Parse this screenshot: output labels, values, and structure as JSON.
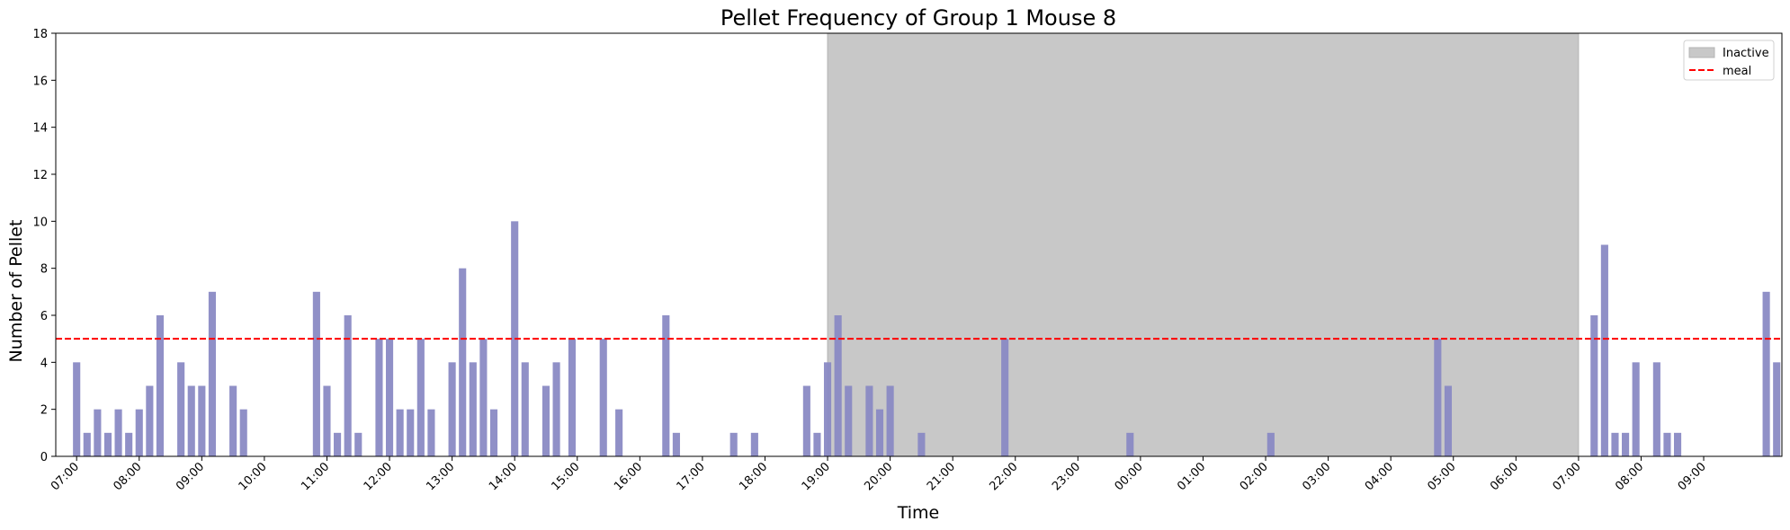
{
  "chart_data": {
    "type": "bar",
    "title": "Pellet Frequency of Group 1 Mouse 8",
    "xlabel": "Time",
    "ylabel": "Number of Pellet",
    "ylim": [
      0,
      18
    ],
    "yticks": [
      0,
      2,
      4,
      6,
      8,
      10,
      12,
      14,
      16,
      18
    ],
    "xlim": [
      "06:40",
      "34:15"
    ],
    "xticks": [
      "07:00",
      "08:00",
      "09:00",
      "10:00",
      "11:00",
      "12:00",
      "13:00",
      "14:00",
      "15:00",
      "16:00",
      "17:00",
      "18:00",
      "19:00",
      "20:00",
      "21:00",
      "22:00",
      "23:00",
      "00:00",
      "01:00",
      "02:00",
      "03:00",
      "04:00",
      "05:00",
      "06:00",
      "07:00",
      "08:00",
      "09:00"
    ],
    "bar_width_minutes": 7,
    "colors": {
      "bar": "#8a8ac4",
      "inactive": "#c8c8c8",
      "meal": "#ff0000"
    },
    "inactive": {
      "name": "Inactive",
      "start": "19:00",
      "end": "31:00"
    },
    "meal": {
      "name": "meal",
      "value": 5
    },
    "legend": {
      "placement": "top-right",
      "entries": [
        "Inactive",
        "meal"
      ]
    },
    "series": [
      {
        "x": [
          "07:00",
          "07:10",
          "07:20",
          "07:30",
          "07:40",
          "07:50",
          "08:00",
          "08:10",
          "08:20",
          "08:40",
          "08:50",
          "09:00",
          "09:10",
          "09:30",
          "09:40",
          "10:50",
          "11:00",
          "11:10",
          "11:20",
          "11:30",
          "11:50",
          "12:00",
          "12:10",
          "12:20",
          "12:30",
          "12:40",
          "13:00",
          "13:10",
          "13:20",
          "13:30",
          "13:40",
          "14:00",
          "14:10",
          "14:30",
          "14:40",
          "14:55",
          "15:25",
          "15:40",
          "16:25",
          "16:35",
          "17:30",
          "17:50",
          "18:40",
          "18:50",
          "19:00",
          "19:10",
          "19:20",
          "19:40",
          "19:50",
          "20:00",
          "20:30",
          "21:50",
          "23:50",
          "26:05",
          "28:45",
          "28:55",
          "31:15",
          "31:25",
          "31:35",
          "31:45",
          "31:55",
          "32:15",
          "32:25",
          "32:35",
          "34:00",
          "34:10"
        ],
        "values": [
          4,
          1,
          2,
          1,
          2,
          1,
          2,
          3,
          6,
          4,
          3,
          3,
          7,
          3,
          2,
          7,
          3,
          1,
          6,
          1,
          5,
          5,
          2,
          2,
          5,
          2,
          4,
          8,
          4,
          5,
          2,
          10,
          4,
          3,
          4,
          5,
          5,
          2,
          6,
          1,
          1,
          1,
          3,
          1,
          4,
          6,
          3,
          3,
          2,
          3,
          1,
          5,
          1,
          1,
          5,
          3,
          6,
          9,
          1,
          1,
          4,
          4,
          1,
          1,
          7,
          4
        ]
      }
    ]
  }
}
